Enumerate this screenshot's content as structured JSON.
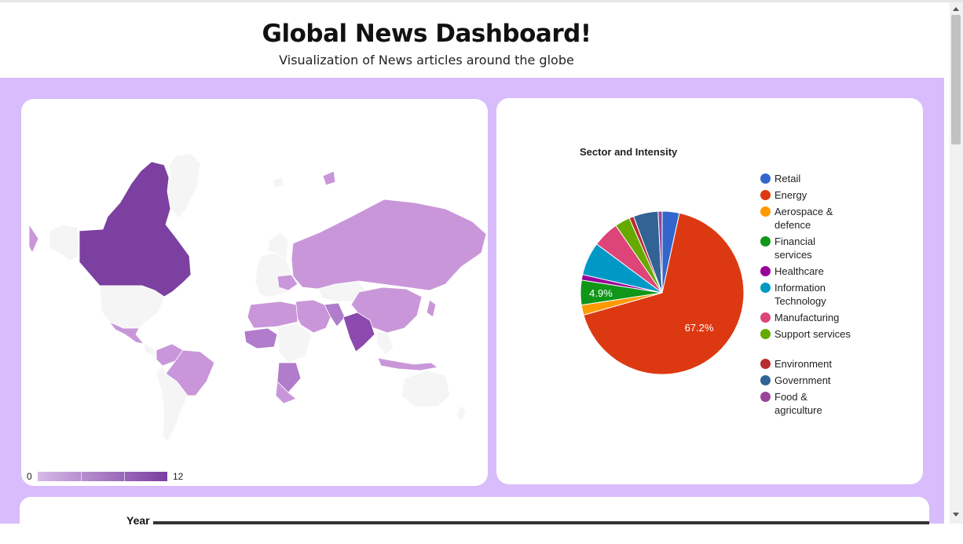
{
  "header": {
    "title": "Global News Dashboard!",
    "subtitle": "Visualization of News articles around the globe"
  },
  "map": {
    "scale_min": "0",
    "scale_max": "12",
    "color_low": "#d7b9e8",
    "color_high": "#7a3ea0",
    "no_data_color": "#f5f5f5"
  },
  "chart_data": {
    "type": "pie",
    "title": "Sector and Intensity",
    "legend_position": "right",
    "slices": [
      {
        "label": "Retail",
        "value": 3.4,
        "color": "#3366cc"
      },
      {
        "label": "Energy",
        "value": 67.2,
        "color": "#dc3912",
        "data_label": "67.2%"
      },
      {
        "label": "Aerospace & defence",
        "value": 2.0,
        "color": "#ff9900"
      },
      {
        "label": "Financial services",
        "value": 4.9,
        "color": "#109618",
        "data_label": "4.9%"
      },
      {
        "label": "Healthcare",
        "value": 1.1,
        "color": "#990099"
      },
      {
        "label": "Information Technology",
        "value": 6.6,
        "color": "#0099c6"
      },
      {
        "label": "Manufacturing",
        "value": 5.2,
        "color": "#dd4477"
      },
      {
        "label": "Support services",
        "value": 3.0,
        "color": "#66aa00"
      },
      {
        "label": "Environment",
        "value": 0.9,
        "color": "#b82e2e"
      },
      {
        "label": "Government",
        "value": 4.9,
        "color": "#316395"
      },
      {
        "label": "Food & agriculture",
        "value": 0.8,
        "color": "#994499"
      }
    ]
  },
  "bottom": {
    "label": "Year"
  }
}
